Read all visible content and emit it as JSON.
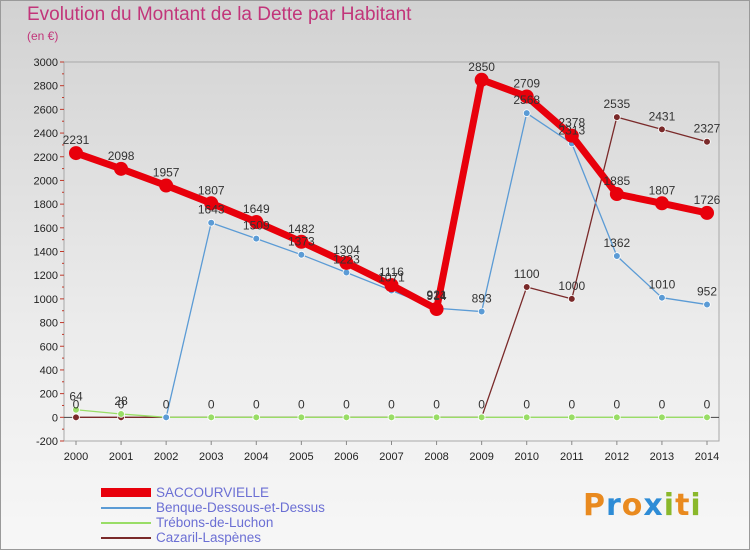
{
  "header": {
    "title": "Evolution du Montant de la Dette par Habitant",
    "subtitle": "(en €)"
  },
  "brand": {
    "letters": [
      "P",
      "r",
      "o",
      "x",
      "i",
      "t",
      "i"
    ],
    "colors": [
      "#e98a1f",
      "#2e8cd6",
      "#e98a1f",
      "#2e8cd6",
      "#8ab82b",
      "#e98a1f",
      "#8ab82b"
    ]
  },
  "chart_data": {
    "type": "line",
    "title": "Evolution du Montant de la Dette par Habitant",
    "ylabel": "(en €)",
    "xlabel": "",
    "x": [
      "2000",
      "2001",
      "2002",
      "2003",
      "2004",
      "2005",
      "2006",
      "2007",
      "2008",
      "2009",
      "2010",
      "2011",
      "2012",
      "2013",
      "2014"
    ],
    "ylim": [
      -200,
      3000
    ],
    "yticks": [
      -200,
      0,
      200,
      400,
      600,
      800,
      1000,
      1200,
      1400,
      1600,
      1800,
      2000,
      2200,
      2400,
      2600,
      2800,
      3000
    ],
    "grid": false,
    "legend_position": "bottom-left",
    "series": [
      {
        "name": "SACCOURVIELLE",
        "color": "#e8000b",
        "values": [
          2231,
          2098,
          1957,
          1807,
          1649,
          1482,
          1304,
          1116,
          914,
          2850,
          2709,
          2378,
          1885,
          1807,
          1726
        ],
        "labels": [
          "2231",
          "2098",
          "1957",
          "1807",
          "1649",
          "1482",
          "1304",
          "1116",
          "914",
          "2850",
          "2709",
          "2378",
          "1885",
          "1807",
          "1726"
        ]
      },
      {
        "name": "Benque-Dessous-et-Dessus",
        "color": "#5b9bd5",
        "values": [
          null,
          null,
          0,
          1643,
          1509,
          1373,
          1223,
          1071,
          921,
          893,
          2568,
          2313,
          1362,
          1010,
          952
        ],
        "labels": [
          "",
          "",
          "",
          "1643",
          "1509",
          "1373",
          "1223",
          "1071",
          "921",
          "893",
          "2568",
          "2313",
          "1362",
          "1010",
          "952"
        ]
      },
      {
        "name": "Trébons-de-Luchon",
        "color": "#99dd66",
        "values": [
          64,
          28,
          0,
          0,
          0,
          0,
          0,
          0,
          0,
          0,
          0,
          0,
          0,
          0,
          0
        ],
        "labels": [
          "64",
          "28",
          "0",
          "0",
          "0",
          "0",
          "0",
          "0",
          "0",
          "0",
          "0",
          "0",
          "0",
          "0",
          "0"
        ]
      },
      {
        "name": "Cazaril-Laspènes",
        "color": "#7a2a2a",
        "values": [
          0,
          0,
          0,
          0,
          0,
          0,
          0,
          0,
          0,
          0,
          1100,
          1000,
          2535,
          2431,
          2327
        ],
        "labels": [
          "0",
          "0",
          "",
          "",
          "",
          "",
          "",
          "",
          "",
          "",
          "1100",
          "1000",
          "2535",
          "2431",
          "2327"
        ]
      }
    ]
  }
}
